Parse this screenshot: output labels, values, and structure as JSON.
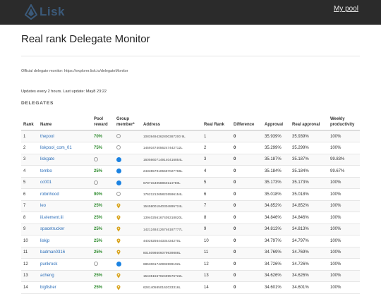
{
  "navbar": {
    "logo_text": "Lisk",
    "my_pool_link": "My pool"
  },
  "page": {
    "title": "Real rank Delegate Monitor",
    "monitor_info": "Official delegate monitor: https://explorer.lisk.io/delegateMonitor",
    "update_info": "Updates every 2 hours. Last update: May8 23:22",
    "section_title": "DELEGATES"
  },
  "table": {
    "headers": {
      "rank": "Rank",
      "name": "Name",
      "pool_reward": "Pool reward",
      "group_member": "Group member*",
      "address": "Address",
      "real_rank": "Real Rank",
      "difference": "Difference",
      "approval": "Approval",
      "real_approval": "Real approval",
      "weekly_productivity": "Weekly productivity"
    },
    "rows": [
      {
        "rank": "1",
        "name": "thepool",
        "reward": "70%",
        "group": "empty",
        "address": "10839494362800387200 9L",
        "real_rank": "1",
        "diff": "0",
        "approval": "35.939%",
        "real_approval": "35.939%",
        "productivity": "100%"
      },
      {
        "rank": "2",
        "name": "liskpool_com_01",
        "reward": "75%",
        "group": "empty",
        "address": "14593474056247442712L",
        "real_rank": "2",
        "diff": "0",
        "approval": "35.299%",
        "real_approval": "35.299%",
        "productivity": "100%"
      },
      {
        "rank": "3",
        "name": "liskgate",
        "reward": "",
        "group": "blue",
        "address": "16056607149140416854L",
        "real_rank": "3",
        "diff": "0",
        "approval": "35.187%",
        "real_approval": "35.187%",
        "productivity": "99.83%"
      },
      {
        "rank": "4",
        "name": "tembo",
        "reward": "25%",
        "group": "blue",
        "address": "24335579105587027766L",
        "real_rank": "4",
        "diff": "0",
        "approval": "35.184%",
        "real_approval": "35.184%",
        "productivity": "99.67%"
      },
      {
        "rank": "5",
        "name": "cc001",
        "reward": "",
        "group": "blue",
        "address": "6787154058850114780L",
        "real_rank": "5",
        "diff": "0",
        "approval": "35.173%",
        "real_approval": "35.173%",
        "productivity": "100%"
      },
      {
        "rank": "6",
        "name": "robinhood",
        "reward": "90%",
        "group": "empty",
        "address": "17621212658226596154L",
        "real_rank": "6",
        "diff": "0",
        "approval": "35.018%",
        "real_approval": "35.018%",
        "productivity": "100%"
      },
      {
        "rank": "7",
        "name": "leo",
        "reward": "25%",
        "group": "pin",
        "address": "15458001840304895724L",
        "real_rank": "7",
        "diff": "0",
        "approval": "34.852%",
        "real_approval": "34.852%",
        "productivity": "100%"
      },
      {
        "rank": "8",
        "name": "iii.element.iii",
        "reward": "25%",
        "group": "pin",
        "address": "13940256167405318820L",
        "real_rank": "8",
        "diff": "0",
        "approval": "34.846%",
        "real_approval": "34.846%",
        "productivity": "100%"
      },
      {
        "rank": "9",
        "name": "spacetrucker",
        "reward": "25%",
        "group": "pin",
        "address": "14212484126746187777L",
        "real_rank": "9",
        "diff": "0",
        "approval": "34.813%",
        "real_approval": "34.813%",
        "productivity": "100%"
      },
      {
        "rank": "10",
        "name": "liskjp",
        "reward": "25%",
        "group": "pin",
        "address": "4402625644334434270L",
        "real_rank": "10",
        "diff": "0",
        "approval": "34.797%",
        "real_approval": "34.797%",
        "productivity": "100%"
      },
      {
        "rank": "11",
        "name": "badman0316",
        "reward": "25%",
        "group": "pin",
        "address": "8015098606079939888L",
        "real_rank": "11",
        "diff": "0",
        "approval": "34.769%",
        "real_approval": "34.769%",
        "productivity": "100%"
      },
      {
        "rank": "12",
        "name": "punkrock",
        "reward": "",
        "group": "blue",
        "address": "6853061742992599192L",
        "real_rank": "12",
        "diff": "0",
        "approval": "34.726%",
        "real_approval": "34.726%",
        "productivity": "100%"
      },
      {
        "rank": "13",
        "name": "acheng",
        "reward": "25%",
        "group": "pin",
        "address": "15435156702499576722L",
        "real_rank": "13",
        "diff": "0",
        "approval": "34.626%",
        "real_approval": "34.626%",
        "productivity": "100%"
      },
      {
        "rank": "14",
        "name": "bigfisher",
        "reward": "25%",
        "group": "pin",
        "address": "6281405850162033316L",
        "real_rank": "14",
        "diff": "0",
        "approval": "34.601%",
        "real_approval": "34.601%",
        "productivity": "100%"
      }
    ]
  },
  "colors": {
    "navbar_bg": "#2b2b2b",
    "link_blue": "#2a6db8",
    "reward_green": "#2e8b2e",
    "group_blue": "#1a82e2",
    "pin_gold": "#d9a520"
  },
  "icons": {
    "logo": "lisk-logo-icon",
    "group_member": "blue-circle-icon",
    "group_candidate": "map-pin-icon",
    "group_none": "empty-circle-icon"
  }
}
